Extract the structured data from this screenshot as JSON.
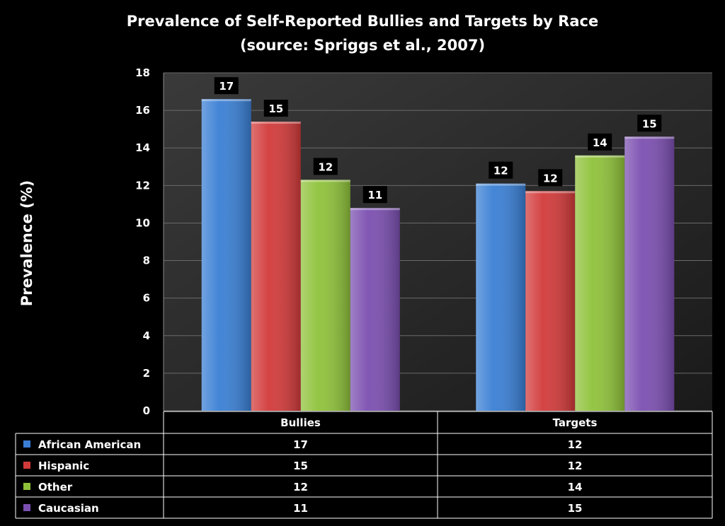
{
  "chart_data": {
    "type": "bar",
    "title": "Prevalence of Self-Reported Bullies and Targets by Race",
    "subtitle": "(source: Spriggs et al., 2007)",
    "ylabel": "Prevalence (%)",
    "xlabel": "",
    "ylim": [
      0,
      18
    ],
    "yticks": [
      "0",
      "2",
      "4",
      "6",
      "8",
      "10",
      "12",
      "14",
      "16",
      "18"
    ],
    "categories": [
      "Bullies",
      "Targets"
    ],
    "series": [
      {
        "name": "African American",
        "color": "#3a7fd4",
        "values": [
          16.6,
          12.1
        ],
        "labels": [
          "17",
          "12"
        ]
      },
      {
        "name": "Hispanic",
        "color": "#d23a3a",
        "values": [
          15.4,
          11.7
        ],
        "labels": [
          "15",
          "12"
        ]
      },
      {
        "name": "Other",
        "color": "#8fc23a",
        "values": [
          12.3,
          13.6
        ],
        "labels": [
          "12",
          "14"
        ]
      },
      {
        "name": "Caucasian",
        "color": "#7b4fb0",
        "values": [
          10.8,
          14.6
        ],
        "labels": [
          "11",
          "15"
        ]
      }
    ],
    "grid": true,
    "legend": "data table below chart"
  }
}
